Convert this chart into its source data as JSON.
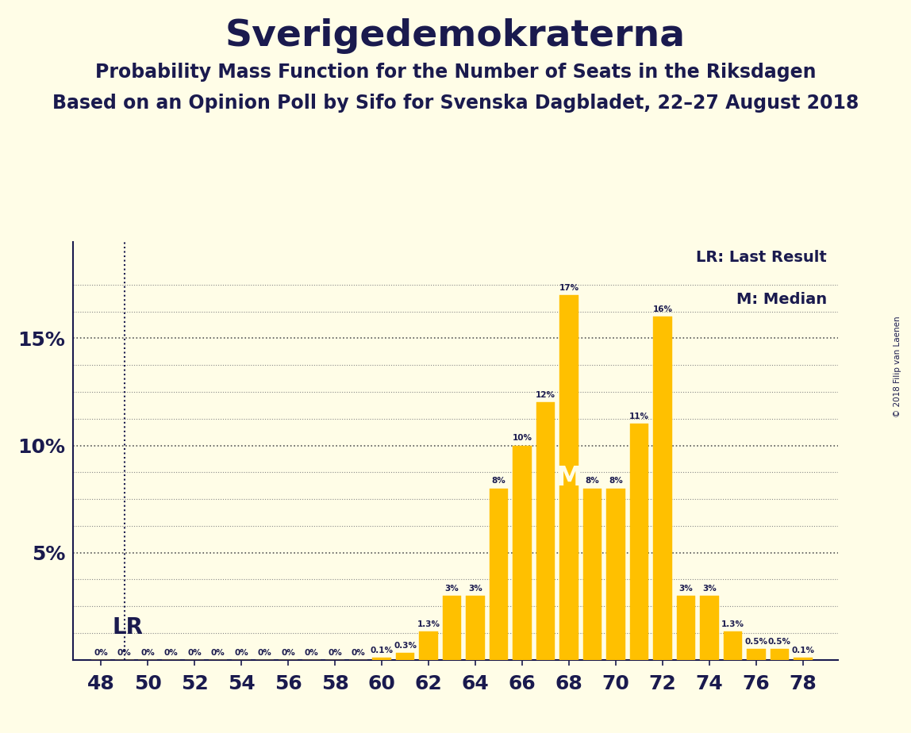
{
  "title": "Sverigedemokraterna",
  "subtitle1": "Probability Mass Function for the Number of Seats in the Riksdagen",
  "subtitle2": "Based on an Opinion Poll by Sifo for Svenska Dagbladet, 22–27 August 2018",
  "copyright": "© 2018 Filip van Laenen",
  "seats": [
    48,
    49,
    50,
    51,
    52,
    53,
    54,
    55,
    56,
    57,
    58,
    59,
    60,
    61,
    62,
    63,
    64,
    65,
    66,
    67,
    68,
    69,
    70,
    71,
    72,
    73,
    74,
    75,
    76,
    77,
    78
  ],
  "probabilities": [
    0.0,
    0.0,
    0.0,
    0.0,
    0.0,
    0.0,
    0.0,
    0.0,
    0.0,
    0.0,
    0.0,
    0.0,
    0.1,
    0.3,
    1.3,
    3.0,
    3.0,
    8.0,
    10.0,
    12.0,
    17.0,
    8.0,
    8.0,
    11.0,
    16.0,
    3.0,
    3.0,
    1.3,
    0.5,
    0.5,
    0.1
  ],
  "bar_color": "#FFC000",
  "background_color": "#FFFDE7",
  "text_color": "#1a1a4e",
  "lr_seat": 49,
  "median_seat": 68,
  "yticks": [
    0,
    5,
    10,
    15
  ],
  "legend_lr": "LR: Last Result",
  "legend_m": "M: Median",
  "lr_label": "LR",
  "median_label": "M",
  "grid_lines_major": [
    5,
    10,
    15
  ],
  "grid_lines_minor": [
    1.25,
    2.5,
    3.75,
    6.25,
    7.5,
    8.75,
    11.25,
    12.5,
    13.75,
    16.25,
    17.5
  ]
}
